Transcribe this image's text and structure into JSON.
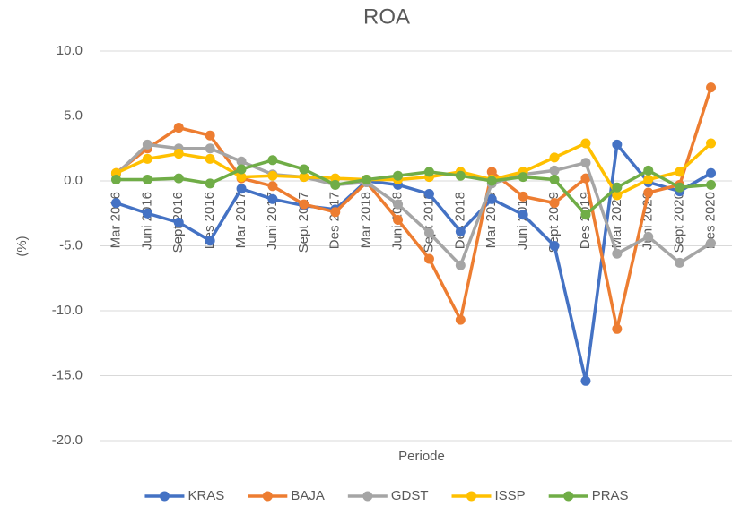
{
  "chart_data": {
    "type": "line",
    "title": "ROA",
    "y_label": "(%)",
    "x_label": "Periode",
    "categories": [
      "Mar 2016",
      "Juni 2016",
      "Sept 2016",
      "Des 2016",
      "Mar 2017",
      "Juni 2017",
      "Sept 2017",
      "Des 2017",
      "Mar 2018",
      "Juni 2018",
      "Sept 2018",
      "Des 2018",
      "Mar 2019",
      "Juni 2019",
      "Sept 2019",
      "Des 2019",
      "Mar 2020",
      "Juni 2020",
      "Sept 2020",
      "Des 2020"
    ],
    "series": [
      {
        "name": "KRAS",
        "color": "#4472c4",
        "values": [
          -1.7,
          -2.5,
          -3.2,
          -4.6,
          -0.6,
          -1.4,
          -1.9,
          -2.2,
          0.0,
          -0.3,
          -1.0,
          -3.9,
          -1.4,
          -2.6,
          -5.0,
          -15.4,
          2.8,
          -0.1,
          -0.8,
          0.6
        ]
      },
      {
        "name": "BAJA",
        "color": "#ed7d31",
        "values": [
          0.6,
          2.5,
          4.1,
          3.5,
          0.2,
          -0.4,
          -1.8,
          -2.4,
          -0.1,
          -3.0,
          -6.0,
          -10.7,
          0.7,
          -1.2,
          -1.7,
          0.2,
          -11.4,
          -0.9,
          -0.3,
          7.2
        ]
      },
      {
        "name": "GDST",
        "color": "#a5a5a5",
        "values": [
          0.5,
          2.8,
          2.5,
          2.5,
          1.5,
          0.5,
          0.3,
          -0.3,
          -0.1,
          -1.8,
          -4.0,
          -6.5,
          -0.2,
          0.5,
          0.8,
          1.4,
          -5.6,
          -4.3,
          -6.3,
          -4.8
        ]
      },
      {
        "name": "ISSP",
        "color": "#ffc000",
        "values": [
          0.6,
          1.7,
          2.1,
          1.7,
          0.3,
          0.4,
          0.3,
          0.2,
          0.1,
          0.1,
          0.3,
          0.7,
          0.1,
          0.7,
          1.8,
          2.9,
          -1.1,
          0.1,
          0.7,
          2.9
        ]
      },
      {
        "name": "PRAS",
        "color": "#70ad47",
        "values": [
          0.1,
          0.1,
          0.2,
          -0.2,
          0.9,
          1.6,
          0.9,
          -0.3,
          0.1,
          0.4,
          0.7,
          0.4,
          0.0,
          0.3,
          0.1,
          -2.6,
          -0.5,
          0.8,
          -0.5,
          -0.3
        ]
      }
    ],
    "ylim": [
      -20,
      10
    ],
    "yticks": [
      {
        "value": -20,
        "label": "-20.0"
      },
      {
        "value": -15,
        "label": "-15.0"
      },
      {
        "value": -10,
        "label": "-10.0"
      },
      {
        "value": -5,
        "label": "-5.0"
      },
      {
        "value": 0,
        "label": "0.0"
      },
      {
        "value": 5,
        "label": "5.0"
      },
      {
        "value": 10,
        "label": "10.0"
      }
    ],
    "grid": true,
    "legend": "bottom"
  }
}
